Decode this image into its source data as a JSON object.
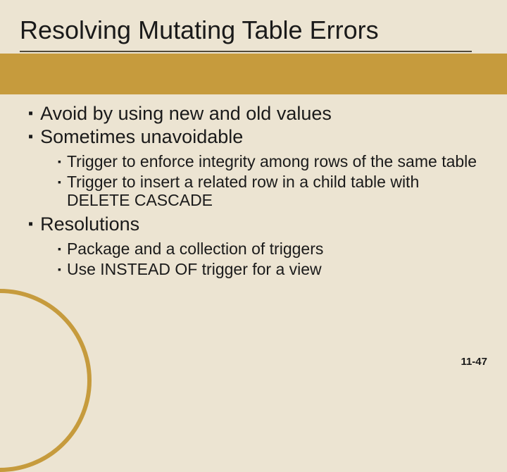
{
  "slide": {
    "title": "Resolving Mutating Table Errors",
    "background_color": "#ece4d2",
    "accent_color": "#c69b3d",
    "underline_color": "#514a3a",
    "text_color": "#1a1a1a",
    "title_fontsize": 36,
    "lvl1_fontsize": 27,
    "lvl2_fontsize": 23,
    "bullets": {
      "b1": "Avoid by using new and old values",
      "b2": "Sometimes unavoidable",
      "b2_1": "Trigger to enforce integrity among rows of the same table",
      "b2_2": "Trigger to insert a related row in a child table with DELETE CASCADE",
      "b3": "Resolutions",
      "b3_1": "Package and a collection of triggers",
      "b3_2": "Use INSTEAD OF trigger for a view"
    },
    "page_number": "11-47"
  }
}
